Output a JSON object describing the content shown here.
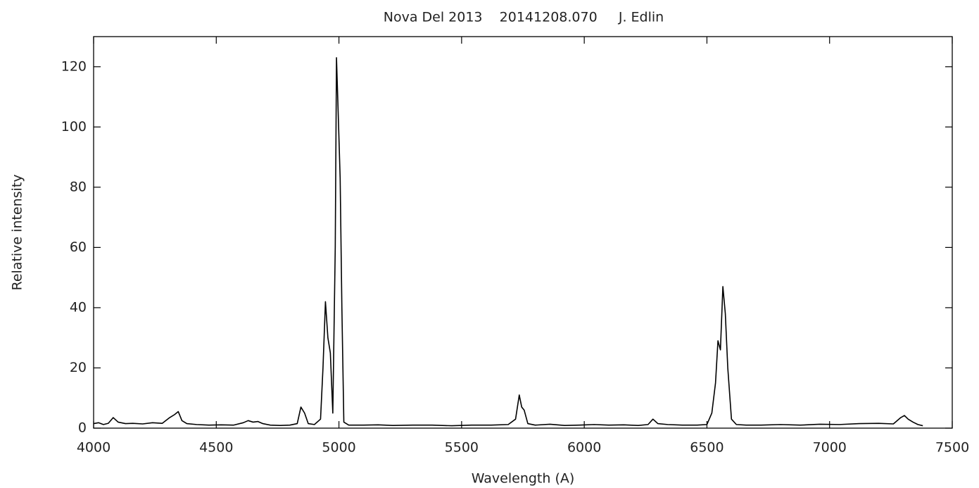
{
  "chart_data": {
    "type": "line",
    "title": "Nova Del 2013    20141208.070     J. Edlin",
    "x_label": "Wavelength (A)",
    "y_label": "Relative intensity",
    "color": "#000000",
    "x": [
      4000,
      4020,
      4040,
      4060,
      4080,
      4100,
      4130,
      4160,
      4200,
      4240,
      4280,
      4310,
      4330,
      4345,
      4360,
      4380,
      4420,
      4470,
      4520,
      4570,
      4610,
      4630,
      4650,
      4670,
      4690,
      4720,
      4760,
      4800,
      4830,
      4845,
      4860,
      4875,
      4900,
      4925,
      4935,
      4945,
      4955,
      4965,
      4975,
      4985,
      4990,
      4995,
      5005,
      5012,
      5020,
      5040,
      5100,
      5160,
      5220,
      5300,
      5380,
      5460,
      5540,
      5620,
      5690,
      5720,
      5735,
      5745,
      5755,
      5770,
      5800,
      5860,
      5920,
      5980,
      6040,
      6100,
      6160,
      6220,
      6260,
      6280,
      6300,
      6340,
      6400,
      6460,
      6500,
      6520,
      6535,
      6545,
      6555,
      6565,
      6575,
      6585,
      6600,
      6620,
      6660,
      6720,
      6800,
      6880,
      6960,
      7040,
      7120,
      7200,
      7260,
      7290,
      7305,
      7320,
      7340,
      7360,
      7380
    ],
    "values": [
      1.5,
      1.8,
      1.2,
      1.6,
      3.5,
      2.0,
      1.5,
      1.6,
      1.4,
      1.8,
      1.6,
      3.5,
      4.5,
      5.5,
      2.5,
      1.5,
      1.2,
      1.0,
      1.1,
      1.0,
      1.8,
      2.5,
      2.0,
      2.2,
      1.5,
      1.0,
      0.9,
      1.0,
      1.5,
      7.0,
      5.0,
      1.5,
      1.2,
      3.0,
      20,
      42,
      30,
      25,
      5,
      60,
      123,
      110,
      83,
      40,
      2.0,
      1.0,
      1.0,
      1.1,
      0.9,
      1.0,
      1.0,
      0.8,
      1.0,
      1.0,
      1.2,
      3.0,
      11,
      7,
      6,
      1.5,
      1.0,
      1.3,
      0.9,
      1.0,
      1.2,
      1.0,
      1.1,
      0.9,
      1.2,
      3.0,
      1.5,
      1.2,
      1.0,
      1.0,
      1.2,
      5,
      15,
      29,
      26,
      47,
      38,
      20,
      3,
      1.2,
      1.0,
      1.0,
      1.2,
      1.0,
      1.3,
      1.2,
      1.5,
      1.6,
      1.4,
      3.5,
      4.2,
      3.0,
      2.0,
      1.2,
      0.8
    ],
    "xlim": [
      4000,
      7500
    ],
    "xticks": [
      4000,
      4500,
      5000,
      5500,
      6000,
      6500,
      7000,
      7500
    ],
    "ylim": [
      0,
      130
    ],
    "yticks": [
      0,
      20,
      40,
      60,
      80,
      100,
      120
    ],
    "grid": false
  }
}
